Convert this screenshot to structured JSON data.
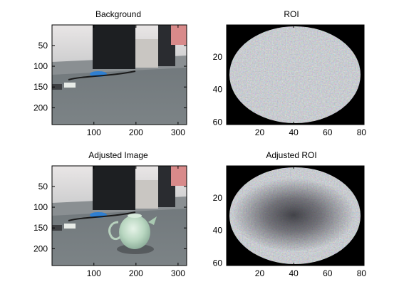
{
  "figure": {
    "background": "#ffffff",
    "panels": [
      {
        "title": "Background",
        "x_ticks": [
          "100",
          "200",
          "300"
        ],
        "y_ticks": [
          "50",
          "100",
          "150",
          "200"
        ],
        "x_range": [
          1,
          320
        ],
        "y_range": [
          1,
          240
        ],
        "x_tick_values": [
          100,
          200,
          300
        ],
        "y_tick_values": [
          50,
          100,
          150,
          200
        ],
        "content": "desk-scene"
      },
      {
        "title": "ROI",
        "x_ticks": [
          "20",
          "40",
          "60",
          "80"
        ],
        "y_ticks": [
          "20",
          "40",
          "60"
        ],
        "x_range": [
          1,
          81
        ],
        "y_range": [
          1,
          61
        ],
        "x_tick_values": [
          20,
          40,
          60,
          80
        ],
        "y_tick_values": [
          20,
          40,
          60
        ],
        "content": "roi-ellipse"
      },
      {
        "title": "Adjusted Image",
        "x_ticks": [
          "100",
          "200",
          "300"
        ],
        "y_ticks": [
          "50",
          "100",
          "150",
          "200"
        ],
        "x_range": [
          1,
          320
        ],
        "y_range": [
          1,
          240
        ],
        "x_tick_values": [
          100,
          200,
          300
        ],
        "y_tick_values": [
          50,
          100,
          150,
          200
        ],
        "content": "desk-scene-with-teapot"
      },
      {
        "title": "Adjusted ROI",
        "x_ticks": [
          "20",
          "40",
          "60",
          "80"
        ],
        "y_ticks": [
          "20",
          "40",
          "60"
        ],
        "x_range": [
          1,
          81
        ],
        "y_range": [
          1,
          61
        ],
        "x_tick_values": [
          20,
          40,
          60,
          80
        ],
        "y_tick_values": [
          20,
          40,
          60
        ],
        "content": "roi-ellipse-with-shadow"
      }
    ]
  }
}
